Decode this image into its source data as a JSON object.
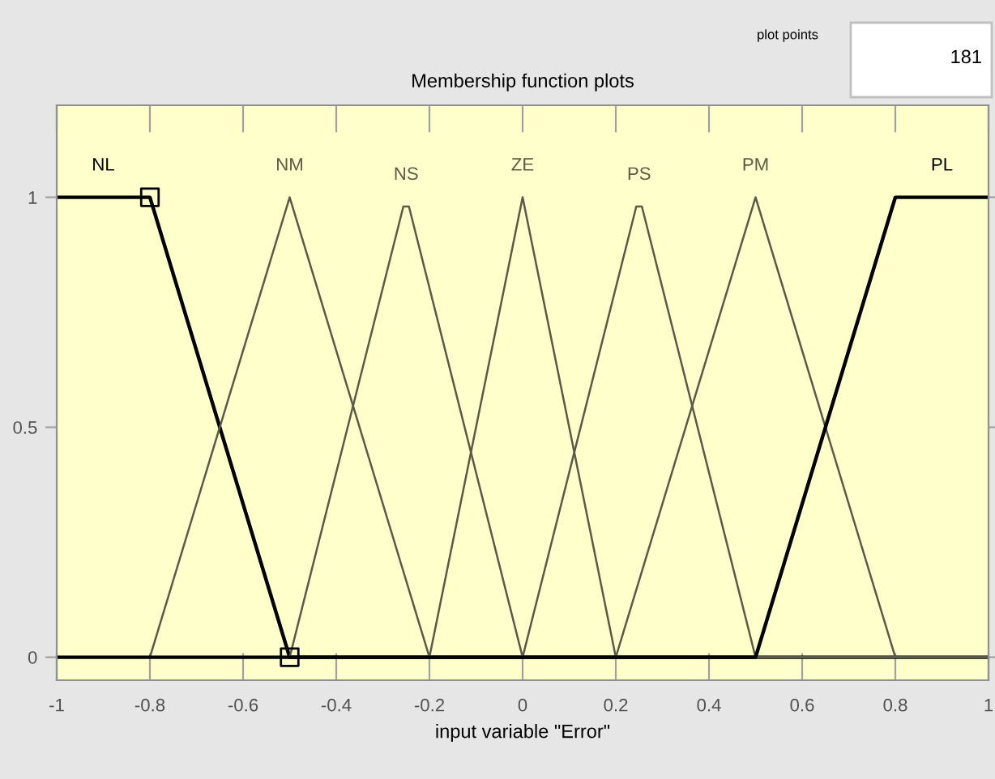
{
  "chart_data": {
    "type": "line",
    "title": "Membership function plots",
    "xlabel": "input variable \"Error\"",
    "xlim": [
      -1,
      1
    ],
    "xticks": [
      -1,
      -0.8,
      -0.6,
      -0.4,
      -0.2,
      0,
      0.2,
      0.4,
      0.6,
      0.8,
      1
    ],
    "ylim": [
      -0.05,
      1.2
    ],
    "yticks": [
      0,
      0.5,
      1
    ],
    "grid": false,
    "legend": false,
    "marker": "none",
    "line_style": "solid",
    "annotations": [
      "plot points",
      "181"
    ],
    "series": [
      {
        "name": "NL",
        "color": "#000000",
        "x": [
          -1,
          -0.8,
          -0.5,
          1
        ],
        "values": [
          1,
          1,
          0,
          0
        ]
      },
      {
        "name": "NM",
        "color": "#5a5a48",
        "x": [
          -1,
          -0.8,
          -0.5,
          -0.2,
          1
        ],
        "values": [
          0,
          0,
          1,
          0,
          0
        ]
      },
      {
        "name": "NS",
        "color": "#5a5a48",
        "x": [
          -1,
          -0.5,
          -0.256,
          -0.244,
          0,
          1
        ],
        "values": [
          0,
          0,
          0.98,
          0.98,
          0,
          0
        ]
      },
      {
        "name": "ZE",
        "color": "#5a5a48",
        "x": [
          -1,
          -0.2,
          0,
          0.2,
          1
        ],
        "values": [
          0,
          0,
          1,
          0,
          0
        ]
      },
      {
        "name": "PS",
        "color": "#5a5a48",
        "x": [
          -1,
          0,
          0.244,
          0.256,
          0.5,
          1
        ],
        "values": [
          0,
          0,
          0.98,
          0.98,
          0,
          0
        ]
      },
      {
        "name": "PM",
        "color": "#5a5a48",
        "x": [
          -1,
          0.2,
          0.5,
          0.8,
          1
        ],
        "values": [
          0,
          0,
          1,
          0,
          0
        ]
      },
      {
        "name": "PL",
        "color": "#000000",
        "x": [
          -1,
          0.5,
          0.8,
          1
        ],
        "values": [
          0,
          0,
          1,
          1
        ]
      },
      {
        "type": "scatter",
        "marker": "square",
        "color": "#000000",
        "x": [
          -0.8,
          -0.5
        ],
        "values": [
          1,
          0
        ]
      }
    ]
  }
}
